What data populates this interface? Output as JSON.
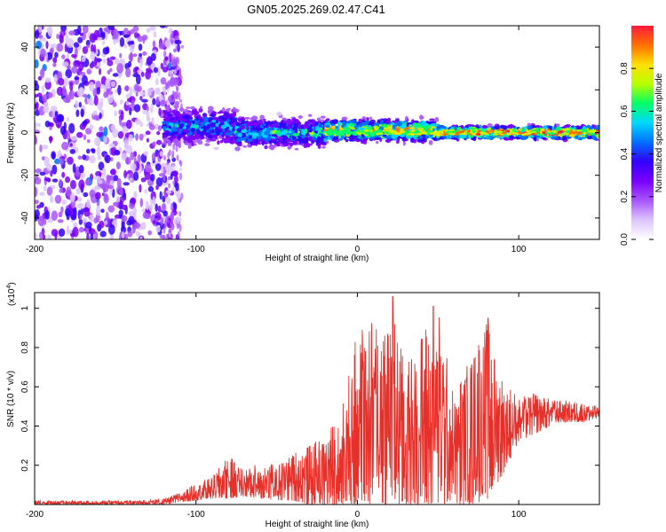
{
  "figure_title": "GN05.2025.269.02.47.C41",
  "colors": {
    "snr_line": "#e8302a",
    "spectrum_cmap": [
      "#ffffff",
      "#dcc4ff",
      "#a855ff",
      "#7a00ff",
      "#3300ff",
      "#0070ff",
      "#00d8ff",
      "#00ff66",
      "#b8ff00",
      "#ffe000",
      "#ff7000",
      "#ff1a3c"
    ]
  },
  "chart_data": [
    {
      "type": "heatmap",
      "name": "spectrogram",
      "title": "",
      "xlabel": "Height of straight line (km)",
      "ylabel": "Frequency (Hz)",
      "xlim": [
        -200,
        150
      ],
      "ylim": [
        -50,
        50
      ],
      "xticks": [
        -200,
        -100,
        0,
        100
      ],
      "yticks": [
        -40,
        -20,
        0,
        20,
        40
      ],
      "colorbar": {
        "label": "Normalized spectral amplitude",
        "range": [
          0,
          1
        ],
        "ticks": [
          "0.0",
          "0.2",
          "0.4",
          "0.6",
          "0.8"
        ]
      },
      "regions": [
        {
          "x_range": [
            -200,
            -120
          ],
          "description_value": "diffuse noise, amplitude 0.1-0.3, spanning -50 to 50 Hz"
        },
        {
          "x_range": [
            -120,
            -75
          ],
          "freq_center_hz": 3,
          "freq_halfwidth_hz": 9,
          "peak_amplitude": 0.5
        },
        {
          "x_range": [
            -75,
            -20
          ],
          "freq_center_hz": 0,
          "freq_halfwidth_hz": 7,
          "peak_amplitude": 0.6
        },
        {
          "x_range": [
            -20,
            50
          ],
          "freq_center_hz": 1,
          "freq_halfwidth_hz": 5,
          "peak_amplitude": 0.9
        },
        {
          "x_range": [
            50,
            150
          ],
          "freq_center_hz": 0,
          "freq_halfwidth_hz": 3,
          "peak_amplitude": 1.0
        }
      ]
    },
    {
      "type": "line",
      "name": "snr",
      "title": "",
      "xlabel": "Height of straight line (km)",
      "ylabel": "SNR (10 * v/v)",
      "y_multiplier": "(x10^4)",
      "xlim": [
        -200,
        150
      ],
      "ylim": [
        0,
        1.08
      ],
      "xticks": [
        -200,
        -100,
        0,
        100
      ],
      "yticks": [
        0.2,
        0.4,
        0.6,
        0.8,
        1.0
      ],
      "series": [
        {
          "name": "SNR",
          "x": [
            -200,
            -180,
            -160,
            -140,
            -120,
            -110,
            -100,
            -90,
            -80,
            -70,
            -60,
            -50,
            -40,
            -30,
            -20,
            -10,
            0,
            10,
            20,
            30,
            40,
            50,
            60,
            70,
            80,
            90,
            100,
            110,
            120,
            130,
            140,
            150
          ],
          "envelope_max": [
            0.02,
            0.02,
            0.02,
            0.02,
            0.03,
            0.06,
            0.11,
            0.14,
            0.25,
            0.18,
            0.22,
            0.2,
            0.27,
            0.3,
            0.35,
            0.48,
            0.89,
            0.95,
            1.06,
            0.7,
            0.9,
            1.01,
            0.55,
            0.8,
            0.95,
            0.65,
            0.55,
            0.57,
            0.54,
            0.53,
            0.52,
            0.5
          ],
          "envelope_min": [
            0.0,
            0.0,
            0.0,
            0.0,
            0.0,
            0.01,
            0.02,
            0.03,
            0.03,
            0.04,
            0.03,
            0.02,
            0.02,
            0.0,
            0.0,
            0.0,
            0.0,
            0.0,
            0.0,
            0.0,
            0.0,
            0.0,
            0.0,
            0.0,
            0.02,
            0.15,
            0.32,
            0.36,
            0.4,
            0.42,
            0.42,
            0.44
          ]
        }
      ],
      "peaks": [
        {
          "x": 22,
          "y": 1.06
        },
        {
          "x": 47,
          "y": 1.01
        },
        {
          "x": 81,
          "y": 0.95
        },
        {
          "x": 3,
          "y": 0.89
        }
      ]
    }
  ]
}
